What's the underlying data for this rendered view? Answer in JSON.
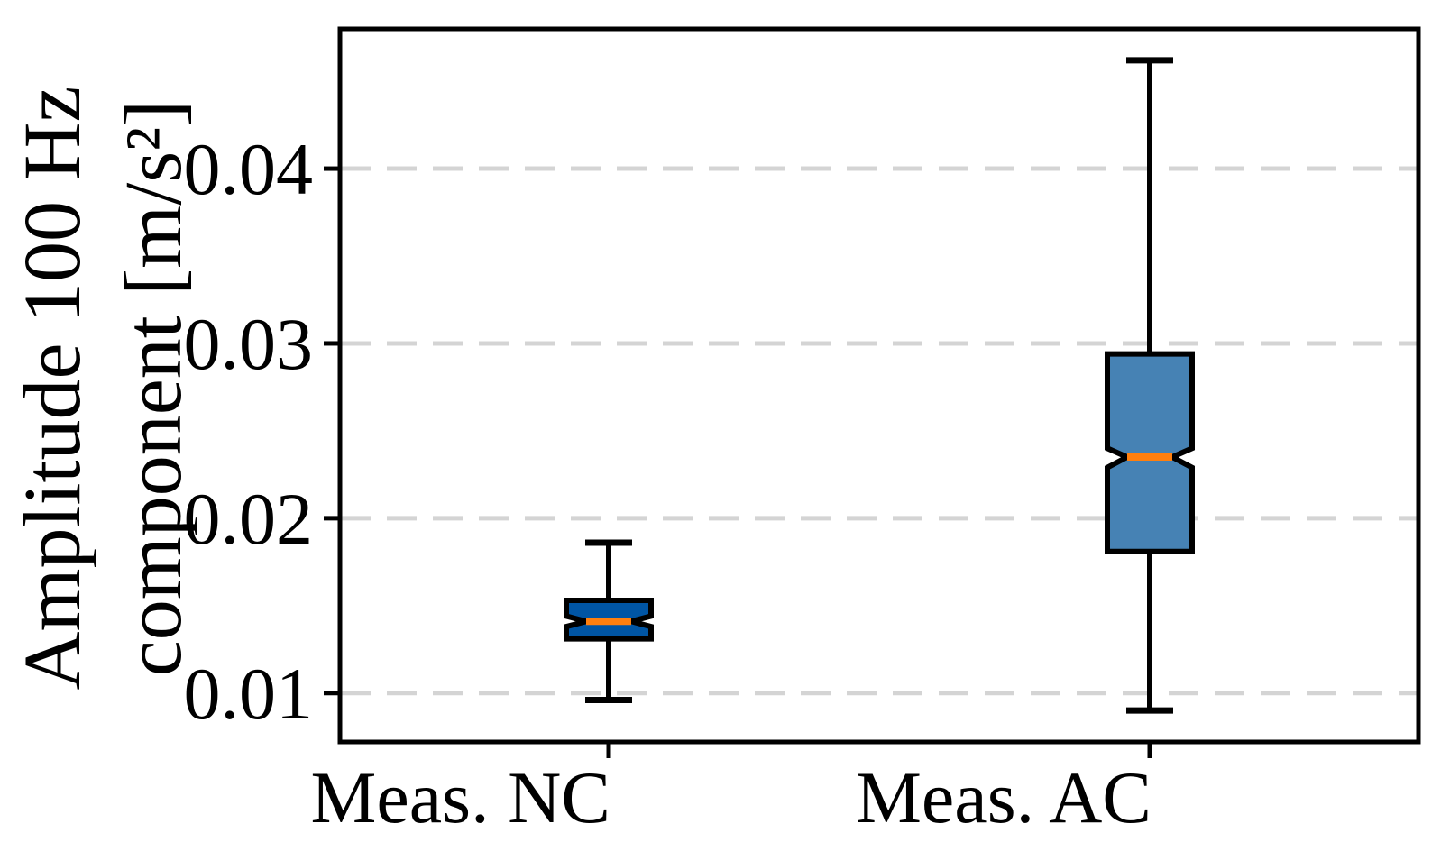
{
  "chart_data": {
    "type": "box",
    "notched": true,
    "title": "",
    "xlabel": "",
    "ylabel_lines": [
      "Amplitude 100 Hz",
      "component [m/s²]"
    ],
    "categories": [
      "Meas. NC",
      "Meas. AC"
    ],
    "yticks": [
      {
        "value": 0.01,
        "label": "0.01"
      },
      {
        "value": 0.02,
        "label": "0.02"
      },
      {
        "value": 0.03,
        "label": "0.03"
      },
      {
        "value": 0.04,
        "label": "0.04"
      }
    ],
    "ylim": [
      0.0071,
      0.0481
    ],
    "xlim": [
      0.5,
      2.5
    ],
    "grid": {
      "horizontal": true,
      "style": "dashed"
    },
    "legend": "none",
    "series": [
      {
        "name": "Meas. NC",
        "position": 1,
        "whisker_low": 0.0096,
        "q1": 0.0131,
        "median": 0.0141,
        "q3": 0.0153,
        "whisker_high": 0.0186,
        "notch_low": 0.0138,
        "notch_high": 0.0144,
        "box_color": "#0055a4"
      },
      {
        "name": "Meas. AC",
        "position": 2,
        "whisker_low": 0.009,
        "q1": 0.0181,
        "median": 0.0235,
        "q3": 0.0294,
        "whisker_high": 0.0462,
        "notch_low": 0.0229,
        "notch_high": 0.024,
        "box_color": "#4682b4"
      }
    ],
    "colors": {
      "median": "#ff7f0e",
      "box_edge": "#000000",
      "whisker": "#000000",
      "grid": "#d4d4d4",
      "axis": "#000000",
      "background": "#ffffff",
      "text": "#000000"
    }
  }
}
